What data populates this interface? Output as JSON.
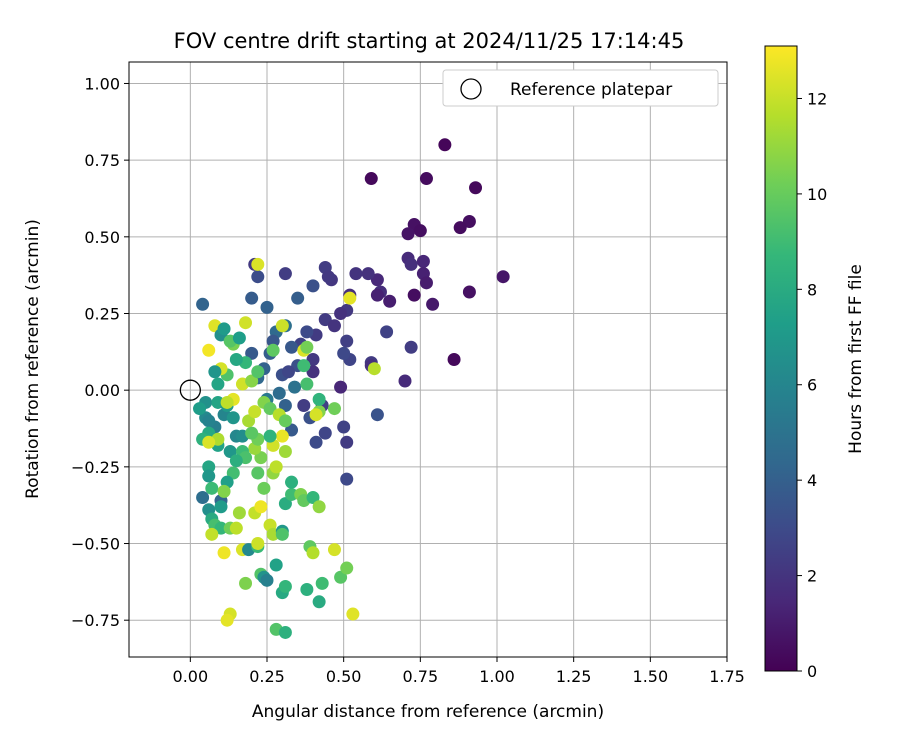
{
  "chart_data": {
    "type": "scatter",
    "title": "FOV centre drift starting at 2024/11/25 17:14:45",
    "xlabel": "Angular distance from reference (arcmin)",
    "ylabel": "Rotation from reference (arcmin)",
    "xlim": [
      -0.2,
      1.75
    ],
    "ylim": [
      -0.87,
      1.07
    ],
    "xticks": [
      0.0,
      0.25,
      0.5,
      0.75,
      1.0,
      1.25,
      1.5,
      1.75
    ],
    "xtick_labels": [
      "0.00",
      "0.25",
      "0.50",
      "0.75",
      "1.00",
      "1.25",
      "1.50",
      "1.75"
    ],
    "yticks": [
      -0.75,
      -0.5,
      -0.25,
      0.0,
      0.25,
      0.5,
      0.75,
      1.0
    ],
    "ytick_labels": [
      "−0.75",
      "−0.50",
      "−0.25",
      "0.00",
      "0.25",
      "0.50",
      "0.75",
      "1.00"
    ],
    "grid": true,
    "legend": {
      "placement": "top-right",
      "entries": [
        "Reference platepar"
      ]
    },
    "reference_point": {
      "x": 0.0,
      "y": 0.0
    },
    "colorbar": {
      "label": "Hours from first FF file",
      "range": [
        0,
        13.1
      ],
      "ticks": [
        0,
        2,
        4,
        6,
        8,
        10,
        12
      ],
      "tick_labels": [
        "0",
        "2",
        "4",
        "6",
        "8",
        "10",
        "12"
      ],
      "colormap": "viridis"
    },
    "colormap_stops": [
      "#440154",
      "#482878",
      "#3e4989",
      "#31688e",
      "#26828e",
      "#1f9e89",
      "#35b779",
      "#6ece58",
      "#b5de2b",
      "#fde725"
    ],
    "points": [
      [
        0.83,
        0.8,
        0.2
      ],
      [
        0.59,
        0.69,
        0.3
      ],
      [
        0.77,
        0.69,
        0.4
      ],
      [
        0.93,
        0.66,
        0.3
      ],
      [
        0.91,
        0.55,
        0.5
      ],
      [
        0.88,
        0.53,
        0.4
      ],
      [
        0.73,
        0.54,
        0.6
      ],
      [
        0.75,
        0.52,
        0.5
      ],
      [
        0.71,
        0.51,
        0.7
      ],
      [
        1.02,
        0.37,
        0.8
      ],
      [
        0.91,
        0.32,
        0.6
      ],
      [
        0.73,
        0.31,
        0.5
      ],
      [
        0.79,
        0.28,
        0.9
      ],
      [
        0.86,
        0.1,
        0.3
      ],
      [
        0.76,
        0.42,
        1.4
      ],
      [
        0.71,
        0.43,
        1.6
      ],
      [
        0.72,
        0.41,
        1.8
      ],
      [
        0.76,
        0.38,
        1.2
      ],
      [
        0.77,
        0.35,
        1.0
      ],
      [
        0.61,
        0.36,
        1.5
      ],
      [
        0.62,
        0.32,
        1.7
      ],
      [
        0.61,
        0.31,
        1.2
      ],
      [
        0.58,
        0.38,
        1.9
      ],
      [
        0.65,
        0.29,
        1.1
      ],
      [
        0.54,
        0.38,
        2.0
      ],
      [
        0.52,
        0.31,
        1.8
      ],
      [
        0.51,
        0.26,
        2.2
      ],
      [
        0.49,
        0.25,
        1.9
      ],
      [
        0.46,
        0.36,
        2.1
      ],
      [
        0.44,
        0.23,
        2.3
      ],
      [
        0.47,
        0.21,
        2.0
      ],
      [
        0.44,
        0.4,
        2.4
      ],
      [
        0.45,
        0.37,
        2.2
      ],
      [
        0.64,
        0.19,
        2.6
      ],
      [
        0.51,
        0.16,
        2.5
      ],
      [
        0.52,
        0.1,
        2.7
      ],
      [
        0.5,
        0.12,
        2.9
      ],
      [
        0.72,
        0.14,
        2.4
      ],
      [
        0.59,
        0.09,
        2.3
      ],
      [
        0.59,
        0.08,
        1.8
      ],
      [
        0.7,
        0.03,
        1.6
      ],
      [
        0.49,
        0.01,
        1.4
      ],
      [
        0.31,
        0.38,
        2.4
      ],
      [
        0.21,
        0.41,
        2.2
      ],
      [
        0.22,
        0.37,
        3.1
      ],
      [
        0.4,
        0.34,
        3.3
      ],
      [
        0.35,
        0.3,
        3.9
      ],
      [
        0.25,
        0.27,
        4.1
      ],
      [
        0.2,
        0.3,
        3.8
      ],
      [
        0.04,
        0.28,
        4.2
      ],
      [
        0.41,
        0.18,
        2.3
      ],
      [
        0.38,
        0.19,
        3.0
      ],
      [
        0.36,
        0.15,
        2.6
      ],
      [
        0.4,
        0.1,
        2.2
      ],
      [
        0.4,
        0.06,
        1.9
      ],
      [
        0.35,
        0.08,
        3.3
      ],
      [
        0.33,
        0.14,
        3.6
      ],
      [
        0.31,
        0.21,
        4.8
      ],
      [
        0.28,
        0.19,
        4.5
      ],
      [
        0.27,
        0.16,
        3.5
      ],
      [
        0.26,
        0.12,
        3.9
      ],
      [
        0.24,
        0.07,
        4.1
      ],
      [
        0.2,
        0.12,
        3.7
      ],
      [
        0.22,
        0.04,
        4.4
      ],
      [
        0.3,
        0.05,
        3.2
      ],
      [
        0.32,
        0.06,
        2.8
      ],
      [
        0.34,
        0.01,
        4.9
      ],
      [
        0.37,
        -0.05,
        2.4
      ],
      [
        0.43,
        -0.05,
        2.5
      ],
      [
        0.44,
        -0.14,
        2.8
      ],
      [
        0.5,
        -0.12,
        2.6
      ],
      [
        0.51,
        -0.17,
        2.3
      ],
      [
        0.51,
        -0.29,
        2.9
      ],
      [
        0.61,
        -0.08,
        3.4
      ],
      [
        0.41,
        -0.17,
        3.0
      ],
      [
        0.39,
        -0.09,
        3.3
      ],
      [
        0.33,
        -0.13,
        3.7
      ],
      [
        0.31,
        -0.05,
        4.1
      ],
      [
        0.29,
        -0.01,
        4.6
      ],
      [
        0.25,
        -0.03,
        5.3
      ],
      [
        0.04,
        -0.35,
        4.7
      ],
      [
        0.1,
        -0.36,
        4.3
      ],
      [
        0.11,
        -0.08,
        6.0
      ],
      [
        0.08,
        -0.12,
        5.6
      ],
      [
        0.05,
        -0.09,
        6.2
      ],
      [
        0.06,
        -0.1,
        5.8
      ],
      [
        0.05,
        -0.04,
        6.6
      ],
      [
        0.03,
        -0.06,
        7.2
      ],
      [
        0.09,
        -0.04,
        7.6
      ],
      [
        0.12,
        -0.05,
        7.0
      ],
      [
        0.14,
        -0.09,
        6.8
      ],
      [
        0.15,
        -0.15,
        6.1
      ],
      [
        0.17,
        -0.15,
        6.4
      ],
      [
        0.13,
        -0.2,
        6.9
      ],
      [
        0.09,
        -0.18,
        7.5
      ],
      [
        0.06,
        -0.14,
        7.9
      ],
      [
        0.04,
        -0.16,
        8.4
      ],
      [
        0.06,
        -0.25,
        7.7
      ],
      [
        0.06,
        -0.28,
        6.9
      ],
      [
        0.07,
        -0.32,
        8.9
      ],
      [
        0.06,
        -0.39,
        6.5
      ],
      [
        0.07,
        -0.42,
        8.0
      ],
      [
        0.08,
        -0.44,
        9.2
      ],
      [
        0.1,
        -0.45,
        8.7
      ],
      [
        0.13,
        -0.45,
        10.2
      ],
      [
        0.15,
        -0.45,
        11.8
      ],
      [
        0.17,
        -0.52,
        12.4
      ],
      [
        0.19,
        -0.52,
        6.2
      ],
      [
        0.22,
        -0.51,
        8.8
      ],
      [
        0.22,
        -0.5,
        12.1
      ],
      [
        0.23,
        -0.6,
        9.5
      ],
      [
        0.24,
        -0.61,
        6.7
      ],
      [
        0.25,
        -0.62,
        5.7
      ],
      [
        0.28,
        -0.57,
        7.5
      ],
      [
        0.3,
        -0.66,
        7.9
      ],
      [
        0.31,
        -0.64,
        8.6
      ],
      [
        0.28,
        -0.78,
        9.5
      ],
      [
        0.31,
        -0.79,
        8.3
      ],
      [
        0.38,
        -0.65,
        8.3
      ],
      [
        0.42,
        -0.69,
        8.0
      ],
      [
        0.43,
        -0.63,
        9.0
      ],
      [
        0.49,
        -0.61,
        9.6
      ],
      [
        0.51,
        -0.58,
        10.3
      ],
      [
        0.53,
        -0.73,
        12.5
      ],
      [
        0.13,
        -0.73,
        12.3
      ],
      [
        0.12,
        -0.75,
        12.6
      ],
      [
        0.18,
        -0.63,
        10.5
      ],
      [
        0.16,
        -0.4,
        11.2
      ],
      [
        0.21,
        -0.4,
        11.9
      ],
      [
        0.23,
        -0.38,
        12.8
      ],
      [
        0.26,
        -0.44,
        12.0
      ],
      [
        0.27,
        -0.47,
        11.4
      ],
      [
        0.3,
        -0.46,
        6.9
      ],
      [
        0.3,
        -0.47,
        9.4
      ],
      [
        0.31,
        -0.37,
        8.1
      ],
      [
        0.33,
        -0.34,
        9.0
      ],
      [
        0.33,
        -0.3,
        8.3
      ],
      [
        0.36,
        -0.34,
        10.5
      ],
      [
        0.37,
        -0.36,
        9.9
      ],
      [
        0.4,
        -0.35,
        8.7
      ],
      [
        0.42,
        -0.38,
        10.9
      ],
      [
        0.39,
        -0.51,
        9.8
      ],
      [
        0.4,
        -0.53,
        11.6
      ],
      [
        0.47,
        -0.52,
        12.3
      ],
      [
        0.24,
        -0.32,
        10.1
      ],
      [
        0.22,
        -0.27,
        9.6
      ],
      [
        0.27,
        -0.27,
        10.9
      ],
      [
        0.28,
        -0.25,
        11.8
      ],
      [
        0.23,
        -0.22,
        10.4
      ],
      [
        0.21,
        -0.19,
        11.1
      ],
      [
        0.22,
        -0.16,
        10.2
      ],
      [
        0.2,
        -0.14,
        9.7
      ],
      [
        0.19,
        -0.1,
        11.4
      ],
      [
        0.21,
        -0.07,
        12.0
      ],
      [
        0.24,
        -0.04,
        10.6
      ],
      [
        0.26,
        -0.06,
        9.9
      ],
      [
        0.29,
        -0.08,
        11.7
      ],
      [
        0.31,
        -0.1,
        10.0
      ],
      [
        0.3,
        -0.15,
        12.7
      ],
      [
        0.31,
        -0.2,
        11.2
      ],
      [
        0.27,
        -0.18,
        12.2
      ],
      [
        0.26,
        -0.15,
        8.5
      ],
      [
        0.17,
        -0.2,
        8.9
      ],
      [
        0.18,
        -0.22,
        9.3
      ],
      [
        0.15,
        -0.23,
        8.2
      ],
      [
        0.14,
        -0.27,
        9.1
      ],
      [
        0.12,
        -0.3,
        7.4
      ],
      [
        0.11,
        -0.33,
        10.6
      ],
      [
        0.1,
        -0.38,
        7.1
      ],
      [
        0.07,
        -0.47,
        11.9
      ],
      [
        0.11,
        -0.53,
        12.8
      ],
      [
        0.09,
        -0.16,
        11.5
      ],
      [
        0.06,
        -0.17,
        12.4
      ],
      [
        0.14,
        -0.03,
        12.6
      ],
      [
        0.12,
        -0.04,
        11.8
      ],
      [
        0.17,
        0.02,
        12.2
      ],
      [
        0.2,
        0.03,
        10.7
      ],
      [
        0.22,
        0.06,
        9.5
      ],
      [
        0.18,
        0.09,
        8.7
      ],
      [
        0.15,
        0.1,
        7.8
      ],
      [
        0.12,
        0.05,
        9.4
      ],
      [
        0.1,
        0.07,
        12.3
      ],
      [
        0.06,
        0.13,
        12.9
      ],
      [
        0.08,
        0.21,
        12.5
      ],
      [
        0.1,
        0.18,
        6.5
      ],
      [
        0.11,
        0.2,
        7.1
      ],
      [
        0.14,
        0.15,
        10.4
      ],
      [
        0.13,
        0.16,
        9.6
      ],
      [
        0.16,
        0.17,
        7.3
      ],
      [
        0.18,
        0.22,
        12.2
      ],
      [
        0.27,
        0.13,
        9.8
      ],
      [
        0.3,
        0.21,
        12.1
      ],
      [
        0.37,
        0.13,
        12.4
      ],
      [
        0.38,
        0.14,
        10.3
      ],
      [
        0.37,
        0.08,
        9.0
      ],
      [
        0.38,
        0.02,
        9.2
      ],
      [
        0.42,
        -0.07,
        10.6
      ],
      [
        0.41,
        -0.08,
        12.3
      ],
      [
        0.42,
        -0.03,
        8.5
      ],
      [
        0.47,
        -0.06,
        10.2
      ],
      [
        0.52,
        0.3,
        12.6
      ],
      [
        0.6,
        0.07,
        11.7
      ],
      [
        0.22,
        0.41,
        12.4
      ],
      [
        0.08,
        0.06,
        6.8
      ],
      [
        0.09,
        0.02,
        7.6
      ]
    ]
  }
}
